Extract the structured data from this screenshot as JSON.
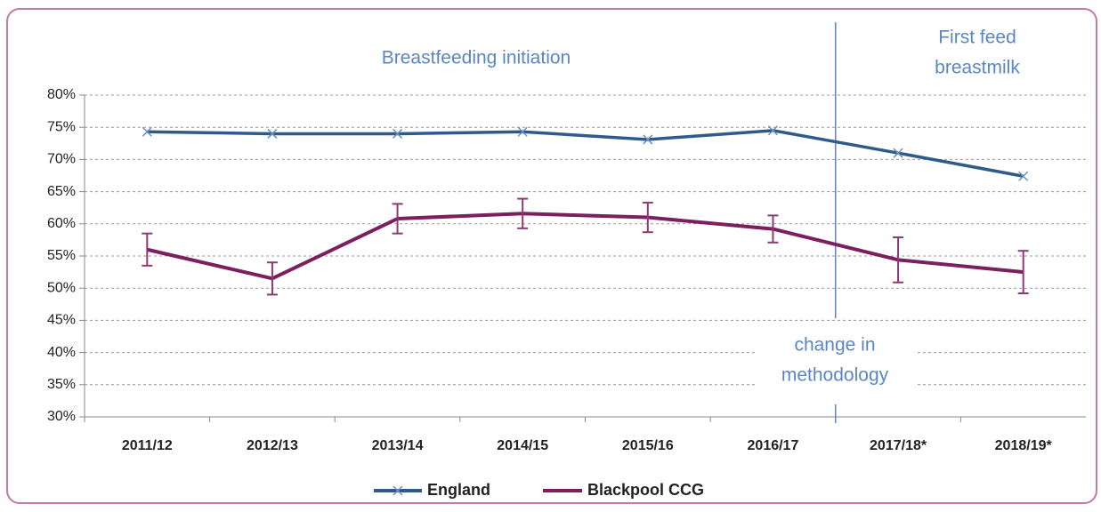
{
  "chart_data": {
    "type": "line",
    "categories": [
      "2011/12",
      "2012/13",
      "2013/14",
      "2014/15",
      "2015/16",
      "2016/17",
      "2017/18*",
      "2018/19*"
    ],
    "series": [
      {
        "name": "England",
        "color": "#2e5b8a",
        "marker": "x",
        "values": [
          74.3,
          74.0,
          74.0,
          74.3,
          73.1,
          74.5,
          71.0,
          67.4
        ]
      },
      {
        "name": "Blackpool CCG",
        "color": "#7b1f5e",
        "values": [
          56.0,
          51.5,
          60.8,
          61.6,
          61.0,
          59.2,
          54.4,
          52.5
        ],
        "errors": [
          2.5,
          2.5,
          2.3,
          2.3,
          2.3,
          2.1,
          3.5,
          3.3
        ]
      }
    ],
    "ylim": [
      30,
      80
    ],
    "yticks": [
      {
        "value": 30,
        "label": "30%"
      },
      {
        "value": 35,
        "label": "35%"
      },
      {
        "value": 40,
        "label": "40%"
      },
      {
        "value": 45,
        "label": "45%"
      },
      {
        "value": 50,
        "label": "50%"
      },
      {
        "value": 55,
        "label": "55%"
      },
      {
        "value": 60,
        "label": "60%"
      },
      {
        "value": 65,
        "label": "65%"
      },
      {
        "value": 70,
        "label": "70%"
      },
      {
        "value": 75,
        "label": "75%"
      },
      {
        "value": 80,
        "label": "80%"
      }
    ],
    "grid": true,
    "legend": "bottom",
    "annotations": [
      {
        "lines": [
          "Breastfeeding initiation"
        ]
      },
      {
        "lines": [
          "First feed",
          "breastmilk"
        ]
      },
      {
        "lines": [
          "change in",
          "methodology"
        ]
      }
    ]
  }
}
